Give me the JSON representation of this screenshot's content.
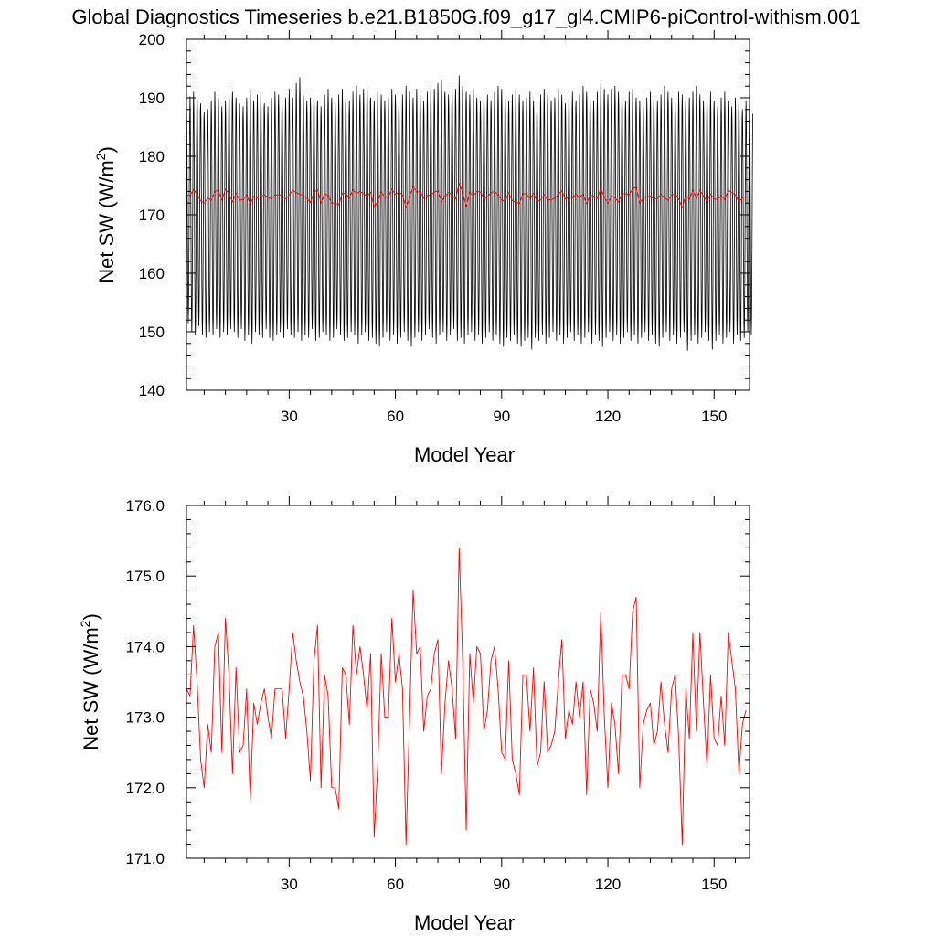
{
  "title": "Global Diagnostics Timeseries b.e21.B1850G.f09_g17_gl4.CMIP6-piControl-withism.001",
  "colors": {
    "monthly": "#000000",
    "annual": "#ff0000",
    "axes": "#000000",
    "background": "#ffffff"
  },
  "chart_data": [
    {
      "type": "line",
      "xlabel": "Model Year",
      "ylabel": "Net SW (W/m",
      "ylabel_sup": "2",
      "ylabel_close": ")",
      "xlim": [
        1,
        160
      ],
      "ylim": [
        140,
        200
      ],
      "xticks": [
        30,
        60,
        90,
        120,
        150
      ],
      "xtick_labels": [
        "30",
        "60",
        "90",
        "120",
        "150"
      ],
      "yticks": [
        140,
        150,
        160,
        170,
        180,
        190,
        200
      ],
      "ytick_labels": [
        "140",
        "150",
        "160",
        "170",
        "180",
        "190",
        "200"
      ],
      "series": [
        {
          "role": "monthly",
          "color": "#000000",
          "note_values": "monthly global mean, seasonal cycle between the annual minimum and maximum each year",
          "annual_max": [
            188.5,
            190.2,
            191.0,
            190.5,
            189.0,
            187.5,
            188.0,
            189.5,
            191.0,
            190.0,
            188.5,
            189.5,
            192.0,
            191.0,
            190.0,
            189.0,
            188.5,
            190.0,
            191.5,
            189.5,
            190.5,
            191.0,
            189.0,
            188.5,
            190.0,
            191.0,
            190.5,
            189.5,
            190.0,
            191.5,
            190.0,
            192.5,
            193.5,
            190.5,
            189.5,
            190.0,
            191.0,
            189.5,
            188.5,
            190.5,
            191.5,
            190.0,
            189.0,
            190.5,
            191.5,
            190.0,
            189.5,
            191.0,
            192.0,
            190.5,
            191.5,
            192.5,
            190.0,
            189.5,
            191.0,
            190.5,
            189.5,
            190.0,
            191.5,
            190.5,
            189.0,
            190.5,
            192.0,
            191.0,
            190.0,
            191.5,
            190.5,
            189.5,
            191.0,
            192.0,
            191.5,
            192.5,
            193.0,
            191.0,
            190.5,
            192.0,
            191.5,
            193.8,
            192.0,
            191.0,
            190.5,
            191.5,
            190.0,
            189.5,
            191.0,
            190.5,
            189.5,
            191.0,
            192.0,
            191.5,
            190.0,
            189.5,
            190.5,
            191.5,
            190.5,
            189.5,
            190.0,
            191.0,
            189.5,
            188.5,
            190.5,
            191.5,
            190.5,
            189.5,
            190.0,
            191.5,
            190.5,
            189.0,
            190.5,
            191.0,
            189.5,
            190.5,
            192.0,
            191.0,
            190.0,
            189.5,
            191.0,
            192.5,
            191.5,
            190.5,
            191.5,
            192.0,
            191.0,
            190.5,
            189.5,
            191.0,
            191.5,
            190.0,
            189.5,
            188.5,
            190.0,
            191.0,
            190.0,
            189.5,
            190.5,
            192.0,
            191.0,
            190.0,
            189.5,
            191.0,
            190.5,
            189.5,
            190.0,
            191.0,
            192.0,
            190.5,
            189.5,
            190.5,
            191.0,
            189.5,
            188.5,
            190.0,
            191.0,
            189.5,
            188.5,
            190.0,
            189.5,
            188.0,
            189.5,
            190.0
          ],
          "annual_min": [
            151.5,
            150.0,
            149.5,
            151.0,
            149.5,
            149.0,
            150.0,
            149.5,
            150.5,
            149.0,
            150.0,
            149.5,
            150.5,
            150.0,
            149.0,
            150.5,
            148.5,
            149.5,
            148.0,
            150.0,
            149.5,
            149.0,
            150.5,
            149.0,
            148.5,
            149.5,
            150.0,
            149.0,
            150.5,
            149.5,
            149.0,
            150.0,
            148.5,
            149.5,
            149.0,
            150.5,
            148.5,
            149.0,
            150.0,
            149.5,
            148.5,
            149.0,
            150.5,
            149.5,
            148.5,
            149.0,
            150.0,
            149.5,
            148.0,
            149.5,
            150.0,
            148.5,
            149.0,
            148.0,
            147.5,
            149.0,
            150.0,
            148.5,
            149.5,
            148.0,
            149.0,
            150.0,
            148.5,
            147.5,
            149.0,
            150.0,
            148.5,
            149.5,
            150.5,
            149.0,
            148.0,
            149.5,
            150.0,
            148.5,
            149.5,
            150.5,
            148.5,
            149.0,
            148.0,
            149.5,
            150.0,
            148.5,
            149.5,
            148.0,
            149.0,
            150.0,
            148.5,
            149.5,
            148.0,
            147.5,
            149.0,
            148.5,
            149.5,
            148.0,
            147.5,
            148.5,
            149.0,
            147.0,
            149.0,
            148.5,
            149.5,
            148.0,
            149.0,
            150.0,
            148.5,
            149.5,
            148.0,
            149.0,
            150.0,
            148.5,
            149.5,
            148.0,
            149.0,
            150.0,
            148.0,
            149.5,
            148.5,
            147.5,
            149.0,
            150.0,
            148.5,
            149.5,
            148.0,
            149.0,
            150.0,
            148.5,
            149.5,
            148.0,
            149.0,
            150.0,
            148.5,
            149.5,
            148.0,
            147.5,
            149.0,
            150.0,
            148.5,
            149.5,
            148.0,
            149.0,
            150.0,
            146.8,
            148.5,
            149.5,
            148.0,
            149.0,
            150.0,
            148.5,
            147.0,
            148.5,
            149.5,
            148.0,
            149.0,
            150.0,
            148.0,
            149.5,
            148.5,
            149.0,
            150.0,
            149.5
          ]
        },
        {
          "role": "annual",
          "color": "#ff0000",
          "x_start": 1,
          "values": [
            173.4,
            173.3,
            174.3,
            173.5,
            172.4,
            172.0,
            172.9,
            172.5,
            174.0,
            174.2,
            172.5,
            174.4,
            173.6,
            172.2,
            173.7,
            172.5,
            172.6,
            173.4,
            171.8,
            173.2,
            172.9,
            173.2,
            173.4,
            173.0,
            172.7,
            173.4,
            173.4,
            173.4,
            172.7,
            173.4,
            174.2,
            173.8,
            173.5,
            173.3,
            172.8,
            172.1,
            173.8,
            174.3,
            172.0,
            173.6,
            173.3,
            172.0,
            172.0,
            171.7,
            173.7,
            173.6,
            172.9,
            174.3,
            173.6,
            174.0,
            173.6,
            173.1,
            173.9,
            171.3,
            172.3,
            173.9,
            173.0,
            173.0,
            174.4,
            173.5,
            173.9,
            173.4,
            171.2,
            173.0,
            174.8,
            173.9,
            174.0,
            172.8,
            173.3,
            173.4,
            173.9,
            174.1,
            172.2,
            173.2,
            173.8,
            173.4,
            172.7,
            175.4,
            173.8,
            171.4,
            173.9,
            173.2,
            174.0,
            173.9,
            172.8,
            173.1,
            173.8,
            174.0,
            173.4,
            172.5,
            172.4,
            173.8,
            172.4,
            172.2,
            171.9,
            173.6,
            173.6,
            172.8,
            173.7,
            172.3,
            172.5,
            173.5,
            172.5,
            172.6,
            172.8,
            173.5,
            174.1,
            172.7,
            173.1,
            172.9,
            173.5,
            173.0,
            173.5,
            171.9,
            173.4,
            173.2,
            172.8,
            174.5,
            173.0,
            172.0,
            173.2,
            172.9,
            172.2,
            173.6,
            173.6,
            173.4,
            174.5,
            174.7,
            172.0,
            172.9,
            173.1,
            173.2,
            172.6,
            172.8,
            173.5,
            172.9,
            172.5,
            173.4,
            173.6,
            172.7,
            171.2,
            173.4,
            172.7,
            174.2,
            172.8,
            174.2,
            173.2,
            172.3,
            173.6,
            172.7,
            172.6,
            173.3,
            172.6,
            174.2,
            173.8,
            173.4,
            172.2,
            172.9,
            173.1
          ]
        }
      ]
    },
    {
      "type": "line",
      "xlabel": "Model Year",
      "ylabel": "Net SW (W/m",
      "ylabel_sup": "2",
      "ylabel_close": ")",
      "xlim": [
        1,
        160
      ],
      "ylim": [
        171,
        176
      ],
      "xticks": [
        30,
        60,
        90,
        120,
        150
      ],
      "xtick_labels": [
        "30",
        "60",
        "90",
        "120",
        "150"
      ],
      "yticks": [
        171,
        172,
        173,
        174,
        175,
        176
      ],
      "ytick_labels": [
        "171.0",
        "172.0",
        "173.0",
        "174.0",
        "175.0",
        "176.0"
      ],
      "series": [
        {
          "role": "annual",
          "color": "#ff0000",
          "x_start": 1,
          "values": [
            173.4,
            173.3,
            174.3,
            173.5,
            172.4,
            172.0,
            172.9,
            172.5,
            174.0,
            174.2,
            172.5,
            174.4,
            173.6,
            172.2,
            173.7,
            172.5,
            172.6,
            173.4,
            171.8,
            173.2,
            172.9,
            173.2,
            173.4,
            173.0,
            172.7,
            173.4,
            173.4,
            173.4,
            172.7,
            173.4,
            174.2,
            173.8,
            173.5,
            173.3,
            172.8,
            172.1,
            173.8,
            174.3,
            172.0,
            173.6,
            173.3,
            172.0,
            172.0,
            171.7,
            173.7,
            173.6,
            172.9,
            174.3,
            173.6,
            174.0,
            173.6,
            173.1,
            173.9,
            171.3,
            172.3,
            173.9,
            173.0,
            173.0,
            174.4,
            173.5,
            173.9,
            173.4,
            171.2,
            173.0,
            174.8,
            173.9,
            174.0,
            172.8,
            173.3,
            173.4,
            173.9,
            174.1,
            172.2,
            173.2,
            173.8,
            173.4,
            172.7,
            175.4,
            173.8,
            171.4,
            173.9,
            173.2,
            174.0,
            173.9,
            172.8,
            173.1,
            173.8,
            174.0,
            173.4,
            172.5,
            172.4,
            173.8,
            172.4,
            172.2,
            171.9,
            173.6,
            173.6,
            172.8,
            173.7,
            172.3,
            172.5,
            173.5,
            172.5,
            172.6,
            172.8,
            173.5,
            174.1,
            172.7,
            173.1,
            172.9,
            173.5,
            173.0,
            173.5,
            171.9,
            173.4,
            173.2,
            172.8,
            174.5,
            173.0,
            172.0,
            173.2,
            172.9,
            172.2,
            173.6,
            173.6,
            173.4,
            174.5,
            174.7,
            172.0,
            172.9,
            173.1,
            173.2,
            172.6,
            172.8,
            173.5,
            172.9,
            172.5,
            173.4,
            173.6,
            172.7,
            171.2,
            173.4,
            172.7,
            174.2,
            172.8,
            174.2,
            173.2,
            172.3,
            173.6,
            172.7,
            172.6,
            173.3,
            172.6,
            174.2,
            173.8,
            173.4,
            172.2,
            172.9,
            173.1
          ]
        }
      ]
    }
  ]
}
